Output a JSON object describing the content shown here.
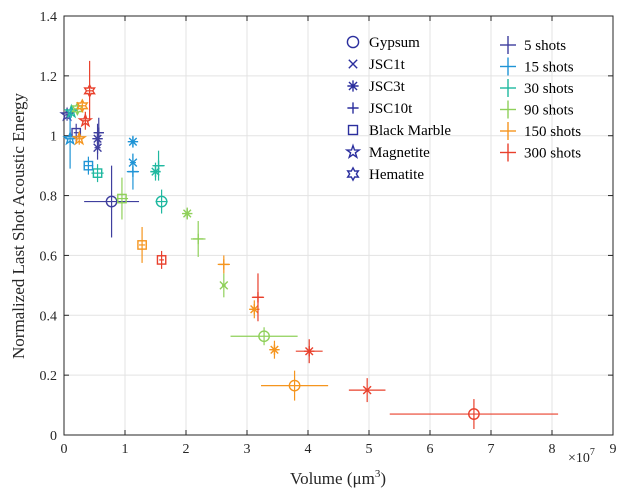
{
  "chart_data": {
    "type": "scatter",
    "title": "",
    "xlabel_main": "Volume (μm",
    "xlabel_sup": "3",
    "xlabel_close": ")",
    "ylabel": "Normalized Last Shot Acoustic Energy",
    "xlim": [
      0,
      9
    ],
    "ylim": [
      0,
      1.4
    ],
    "x_exponent_base": "×10",
    "x_exponent_power": "7",
    "x_ticks": [
      "0",
      "1",
      "2",
      "3",
      "4",
      "5",
      "6",
      "7",
      "8",
      "9"
    ],
    "y_ticks": [
      "0",
      "0.2",
      "0.4",
      "0.6",
      "0.8",
      "1",
      "1.2",
      "1.4"
    ],
    "grid": true,
    "legend_position": "top-right",
    "materials": [
      {
        "name": "Gypsum",
        "marker": "circle"
      },
      {
        "name": "JSC1t",
        "marker": "x"
      },
      {
        "name": "JSC3t",
        "marker": "asterisk"
      },
      {
        "name": "JSC10t",
        "marker": "plus"
      },
      {
        "name": "Black Marble",
        "marker": "square"
      },
      {
        "name": "Magnetite",
        "marker": "pentagram"
      },
      {
        "name": "Hematite",
        "marker": "hexagram"
      }
    ],
    "shot_series": [
      {
        "name": "5 shots",
        "color": "#3f3f9e"
      },
      {
        "name": "15 shots",
        "color": "#1f94d6"
      },
      {
        "name": "30 shots",
        "color": "#1fb8a0"
      },
      {
        "name": "90 shots",
        "color": "#8fd05a"
      },
      {
        "name": "150 shots",
        "color": "#f5951e"
      },
      {
        "name": "300 shots",
        "color": "#e9402c"
      }
    ],
    "points": [
      {
        "material": "Gypsum",
        "shots": "5 shots",
        "x": 0.78,
        "y": 0.78,
        "xerr": 0.45,
        "yerr": 0.12
      },
      {
        "material": "Gypsum",
        "shots": "30 shots",
        "x": 1.6,
        "y": 0.78,
        "xerr": 0.1,
        "yerr": 0.04
      },
      {
        "material": "Gypsum",
        "shots": "90 shots",
        "x": 3.28,
        "y": 0.33,
        "xerr": 0.55,
        "yerr": 0.03
      },
      {
        "material": "Gypsum",
        "shots": "150 shots",
        "x": 3.78,
        "y": 0.165,
        "xerr": 0.55,
        "yerr": 0.05
      },
      {
        "material": "Gypsum",
        "shots": "300 shots",
        "x": 6.72,
        "y": 0.07,
        "xerr": 1.38,
        "yerr": 0.05
      },
      {
        "material": "JSC1t",
        "shots": "5 shots",
        "x": 0.55,
        "y": 0.96,
        "xerr": 0.05,
        "yerr": 0.04
      },
      {
        "material": "JSC1t",
        "shots": "15 shots",
        "x": 1.13,
        "y": 0.91,
        "xerr": 0.05,
        "yerr": 0.03
      },
      {
        "material": "JSC1t",
        "shots": "90 shots",
        "x": 2.62,
        "y": 0.5,
        "xerr": 0.03,
        "yerr": 0.04
      },
      {
        "material": "JSC1t",
        "shots": "300 shots",
        "x": 4.97,
        "y": 0.15,
        "xerr": 0.3,
        "yerr": 0.04
      },
      {
        "material": "JSC3t",
        "shots": "5 shots",
        "x": 0.55,
        "y": 0.99,
        "xerr": 0.06,
        "yerr": 0.05
      },
      {
        "material": "JSC3t",
        "shots": "15 shots",
        "x": 1.13,
        "y": 0.98,
        "xerr": 0.04,
        "yerr": 0.02
      },
      {
        "material": "JSC3t",
        "shots": "30 shots",
        "x": 1.5,
        "y": 0.88,
        "xerr": 0.08,
        "yerr": 0.03
      },
      {
        "material": "JSC3t",
        "shots": "90 shots",
        "x": 2.02,
        "y": 0.74,
        "xerr": 0.04,
        "yerr": 0.02
      },
      {
        "material": "JSC3t",
        "shots": "150 shots",
        "x": 3.45,
        "y": 0.285,
        "xerr": 0.06,
        "yerr": 0.03
      },
      {
        "material": "JSC3t",
        "shots": "150 shots",
        "x": 3.12,
        "y": 0.42,
        "xerr": 0.05,
        "yerr": 0.03
      },
      {
        "material": "JSC3t",
        "shots": "300 shots",
        "x": 4.02,
        "y": 0.28,
        "xerr": 0.22,
        "yerr": 0.04
      },
      {
        "material": "JSC10t",
        "shots": "5 shots",
        "x": 0.57,
        "y": 1.01,
        "xerr": 0.08,
        "yerr": 0.05
      },
      {
        "material": "JSC10t",
        "shots": "15 shots",
        "x": 1.13,
        "y": 0.88,
        "xerr": 0.1,
        "yerr": 0.06
      },
      {
        "material": "JSC10t",
        "shots": "30 shots",
        "x": 1.55,
        "y": 0.9,
        "xerr": 0.1,
        "yerr": 0.05
      },
      {
        "material": "JSC10t",
        "shots": "90 shots",
        "x": 2.2,
        "y": 0.655,
        "xerr": 0.12,
        "yerr": 0.06
      },
      {
        "material": "JSC10t",
        "shots": "150 shots",
        "x": 2.62,
        "y": 0.57,
        "xerr": 0.1,
        "yerr": 0.03
      },
      {
        "material": "JSC10t",
        "shots": "300 shots",
        "x": 3.18,
        "y": 0.46,
        "xerr": 0.1,
        "yerr": 0.08
      },
      {
        "material": "Black Marble",
        "shots": "5 shots",
        "x": 0.2,
        "y": 1.01,
        "xerr": 0.04,
        "yerr": 0.03
      },
      {
        "material": "Black Marble",
        "shots": "15 shots",
        "x": 0.4,
        "y": 0.9,
        "xerr": 0.08,
        "yerr": 0.03
      },
      {
        "material": "Black Marble",
        "shots": "30 shots",
        "x": 0.55,
        "y": 0.875,
        "xerr": 0.1,
        "yerr": 0.03
      },
      {
        "material": "Black Marble",
        "shots": "90 shots",
        "x": 0.95,
        "y": 0.79,
        "xerr": 0.1,
        "yerr": 0.07
      },
      {
        "material": "Black Marble",
        "shots": "150 shots",
        "x": 1.28,
        "y": 0.635,
        "xerr": 0.05,
        "yerr": 0.06
      },
      {
        "material": "Black Marble",
        "shots": "300 shots",
        "x": 1.6,
        "y": 0.585,
        "xerr": 0.04,
        "yerr": 0.03
      },
      {
        "material": "Magnetite",
        "shots": "5 shots",
        "x": 0.05,
        "y": 1.07,
        "xerr": 0.03,
        "yerr": 0.02
      },
      {
        "material": "Magnetite",
        "shots": "15 shots",
        "x": 0.1,
        "y": 0.99,
        "xerr": 0.08,
        "yerr": 0.1
      },
      {
        "material": "Magnetite",
        "shots": "30 shots",
        "x": 0.12,
        "y": 1.08,
        "xerr": 0.03,
        "yerr": 0.02
      },
      {
        "material": "Magnetite",
        "shots": "150 shots",
        "x": 0.25,
        "y": 0.99,
        "xerr": 0.05,
        "yerr": 0.02
      },
      {
        "material": "Magnetite",
        "shots": "300 shots",
        "x": 0.35,
        "y": 1.05,
        "xerr": 0.05,
        "yerr": 0.03
      },
      {
        "material": "Hematite",
        "shots": "90 shots",
        "x": 0.22,
        "y": 1.09,
        "xerr": 0.06,
        "yerr": 0.02
      },
      {
        "material": "Hematite",
        "shots": "150 shots",
        "x": 0.3,
        "y": 1.1,
        "xerr": 0.05,
        "yerr": 0.02
      },
      {
        "material": "Hematite",
        "shots": "300 shots",
        "x": 0.42,
        "y": 1.15,
        "xerr": 0.05,
        "yerr": 0.1
      }
    ]
  }
}
